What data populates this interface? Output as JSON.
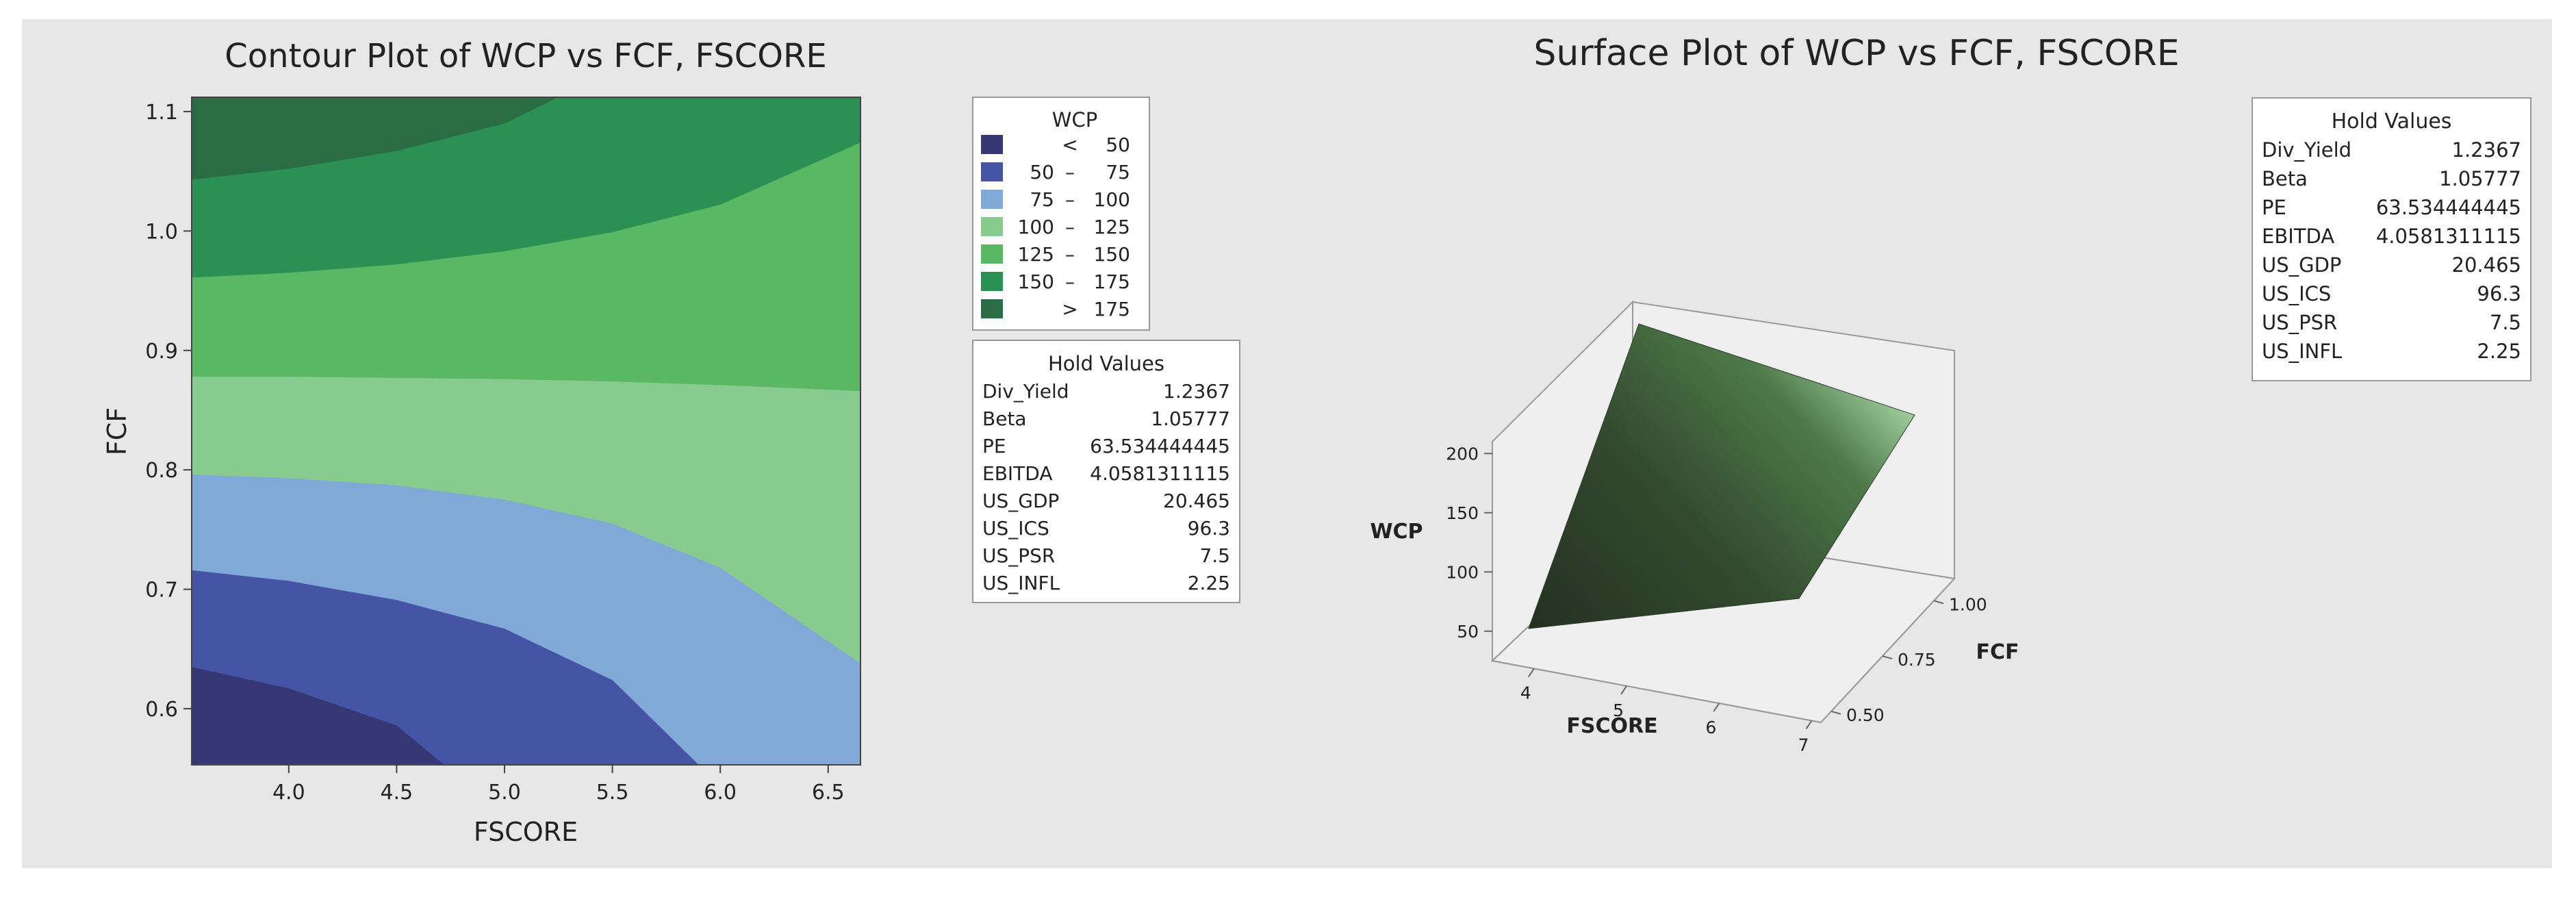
{
  "contour": {
    "title": "Contour Plot of WCP vs FCF, FSCORE",
    "xlabel": "FSCORE",
    "ylabel": "FCF",
    "legend_title": "WCP",
    "legend": [
      {
        "lo": "",
        "dash": "<",
        "hi": "50",
        "color": "#363774"
      },
      {
        "lo": "50",
        "dash": "–",
        "hi": "75",
        "color": "#4654a6"
      },
      {
        "lo": "75",
        "dash": "–",
        "hi": "100",
        "color": "#80a9d8"
      },
      {
        "lo": "100",
        "dash": "–",
        "hi": "125",
        "color": "#87cb8e"
      },
      {
        "lo": "125",
        "dash": "–",
        "hi": "150",
        "color": "#5ab764"
      },
      {
        "lo": "150",
        "dash": "–",
        "hi": "175",
        "color": "#2b9053"
      },
      {
        "lo": "",
        "dash": ">",
        "hi": "175",
        "color": "#2a6d45"
      }
    ]
  },
  "surface": {
    "title": "Surface Plot of WCP vs FCF, FSCORE",
    "zlabel": "WCP",
    "xlabel": "FSCORE",
    "ylabel": "FCF"
  },
  "hold_values": {
    "title": "Hold Values",
    "rows": [
      {
        "name": "Div_Yield",
        "value": "1.2367"
      },
      {
        "name": "Beta",
        "value": "1.05777"
      },
      {
        "name": "PE",
        "value": "63.534444445"
      },
      {
        "name": "EBITDA",
        "value": "4.0581311115"
      },
      {
        "name": "US_GDP",
        "value": "20.465"
      },
      {
        "name": "US_ICS",
        "value": "96.3"
      },
      {
        "name": "US_PSR",
        "value": "7.5"
      },
      {
        "name": "US_INFL",
        "value": "2.25"
      }
    ]
  },
  "chart_data": [
    {
      "type": "heatmap",
      "title": "Contour Plot of WCP vs FCF, FSCORE",
      "xlabel": "FSCORE",
      "ylabel": "FCF",
      "xlim": [
        3.55,
        6.65
      ],
      "ylim": [
        0.553,
        1.112
      ],
      "xticks": [
        "4.0",
        "4.5",
        "5.0",
        "5.5",
        "6.0",
        "6.5"
      ],
      "yticks": [
        "0.6",
        "0.7",
        "0.8",
        "0.9",
        "1.0",
        "1.1"
      ],
      "levels": [
        50,
        75,
        100,
        125,
        150,
        175
      ],
      "level_boundaries": [
        {
          "level": 50,
          "points": [
            [
              3.55,
              0.635
            ],
            [
              4.0,
              0.617
            ],
            [
              4.5,
              0.586
            ],
            [
              4.72,
              0.553
            ]
          ]
        },
        {
          "level": 75,
          "points": [
            [
              3.55,
              0.716
            ],
            [
              4.0,
              0.707
            ],
            [
              4.5,
              0.691
            ],
            [
              5.0,
              0.667
            ],
            [
              5.5,
              0.624
            ],
            [
              5.9,
              0.553
            ]
          ]
        },
        {
          "level": 100,
          "points": [
            [
              3.55,
              0.796
            ],
            [
              4.0,
              0.793
            ],
            [
              4.5,
              0.787
            ],
            [
              5.0,
              0.775
            ],
            [
              5.5,
              0.755
            ],
            [
              6.0,
              0.718
            ],
            [
              6.65,
              0.638
            ]
          ]
        },
        {
          "level": 125,
          "points": [
            [
              3.55,
              0.878
            ],
            [
              4.0,
              0.878
            ],
            [
              4.5,
              0.877
            ],
            [
              5.0,
              0.876
            ],
            [
              5.5,
              0.874
            ],
            [
              6.0,
              0.871
            ],
            [
              6.65,
              0.866
            ]
          ]
        },
        {
          "level": 150,
          "points": [
            [
              3.55,
              0.961
            ],
            [
              4.0,
              0.965
            ],
            [
              4.5,
              0.972
            ],
            [
              5.0,
              0.983
            ],
            [
              5.5,
              0.999
            ],
            [
              6.0,
              1.022
            ],
            [
              6.65,
              1.074
            ]
          ]
        },
        {
          "level": 175,
          "points": [
            [
              3.55,
              1.043
            ],
            [
              4.0,
              1.052
            ],
            [
              4.5,
              1.067
            ],
            [
              5.0,
              1.09
            ],
            [
              5.25,
              1.112
            ]
          ]
        }
      ]
    },
    {
      "type": "surface",
      "title": "Surface Plot of WCP vs FCF, FSCORE",
      "xlabel": "FSCORE",
      "ylabel": "FCF",
      "zlabel": "WCP",
      "xticks": [
        "4",
        "5",
        "6",
        "7"
      ],
      "yticks": [
        "0.50",
        "0.75",
        "1.00"
      ],
      "zticks": [
        "50",
        "100",
        "150",
        "200"
      ],
      "xlim": [
        3.55,
        7.1
      ],
      "ylim": [
        0.45,
        1.1
      ],
      "zlim": [
        25,
        210
      ]
    }
  ]
}
